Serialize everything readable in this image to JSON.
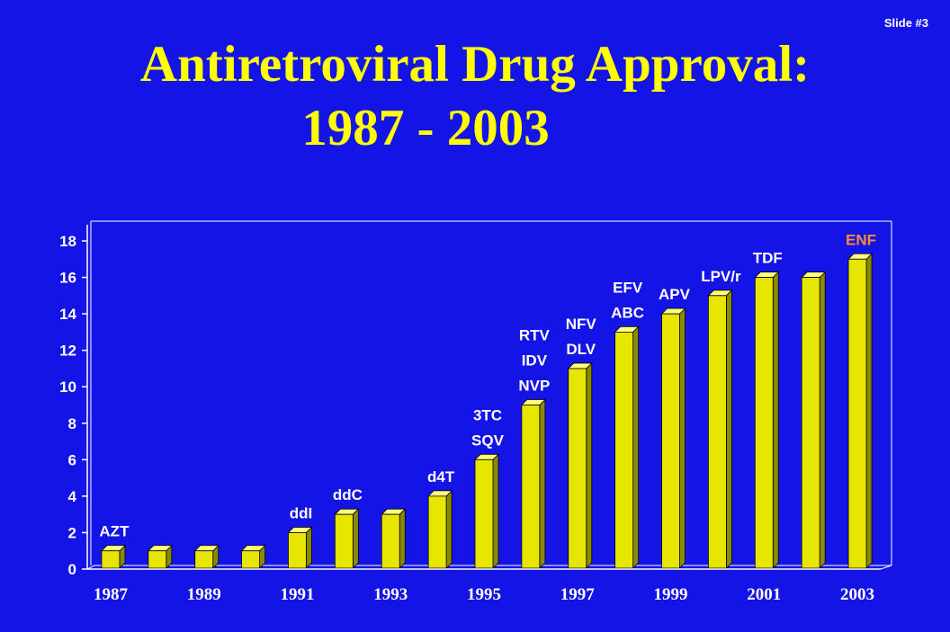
{
  "slide_number": "Slide #3",
  "title_line1": "Antiretroviral Drug Approval:",
  "title_line2": "1987 - 2003",
  "colors": {
    "background": "#1414e6",
    "title": "#ffff00",
    "bar_front": "#e6e600",
    "bar_side": "#8a8a00",
    "bar_top": "#ffff80",
    "axis": "#ffffff",
    "label": "#ffffff",
    "highlight_label": "#ff8c2e"
  },
  "chart_data": {
    "type": "bar",
    "categories": [
      "1987",
      "1988",
      "1989",
      "1990",
      "1991",
      "1992",
      "1993",
      "1994",
      "1995",
      "1996",
      "1997",
      "1998",
      "1999",
      "2000",
      "2001",
      "2002",
      "2003"
    ],
    "values": [
      1,
      1,
      1,
      1,
      2,
      3,
      3,
      4,
      6,
      9,
      11,
      13,
      14,
      15,
      16,
      16,
      17
    ],
    "x_tick_labels": [
      "1987",
      "1989",
      "1991",
      "1993",
      "1995",
      "1997",
      "1999",
      "2001",
      "2003"
    ],
    "ylim": [
      0,
      18
    ],
    "y_ticks": [
      0,
      2,
      4,
      6,
      8,
      10,
      12,
      14,
      16,
      18
    ],
    "grid": false,
    "three_d": true,
    "annotations": [
      {
        "year": "1987",
        "lines": [
          "AZT"
        ]
      },
      {
        "year": "1991",
        "lines": [
          "ddI"
        ]
      },
      {
        "year": "1992",
        "lines": [
          "ddC"
        ]
      },
      {
        "year": "1994",
        "lines": [
          "d4T"
        ]
      },
      {
        "year": "1995",
        "lines": [
          "3TC",
          "SQV"
        ]
      },
      {
        "year": "1996",
        "lines": [
          "RTV",
          "IDV",
          "NVP"
        ]
      },
      {
        "year": "1997",
        "lines": [
          "NFV",
          "DLV"
        ]
      },
      {
        "year": "1998",
        "lines": [
          "EFV",
          "ABC"
        ]
      },
      {
        "year": "1999",
        "lines": [
          "APV"
        ]
      },
      {
        "year": "2000",
        "lines": [
          "LPV/r"
        ]
      },
      {
        "year": "2001",
        "lines": [
          "TDF"
        ]
      },
      {
        "year": "2003",
        "lines": [
          "ENF"
        ],
        "highlight": true
      }
    ]
  }
}
